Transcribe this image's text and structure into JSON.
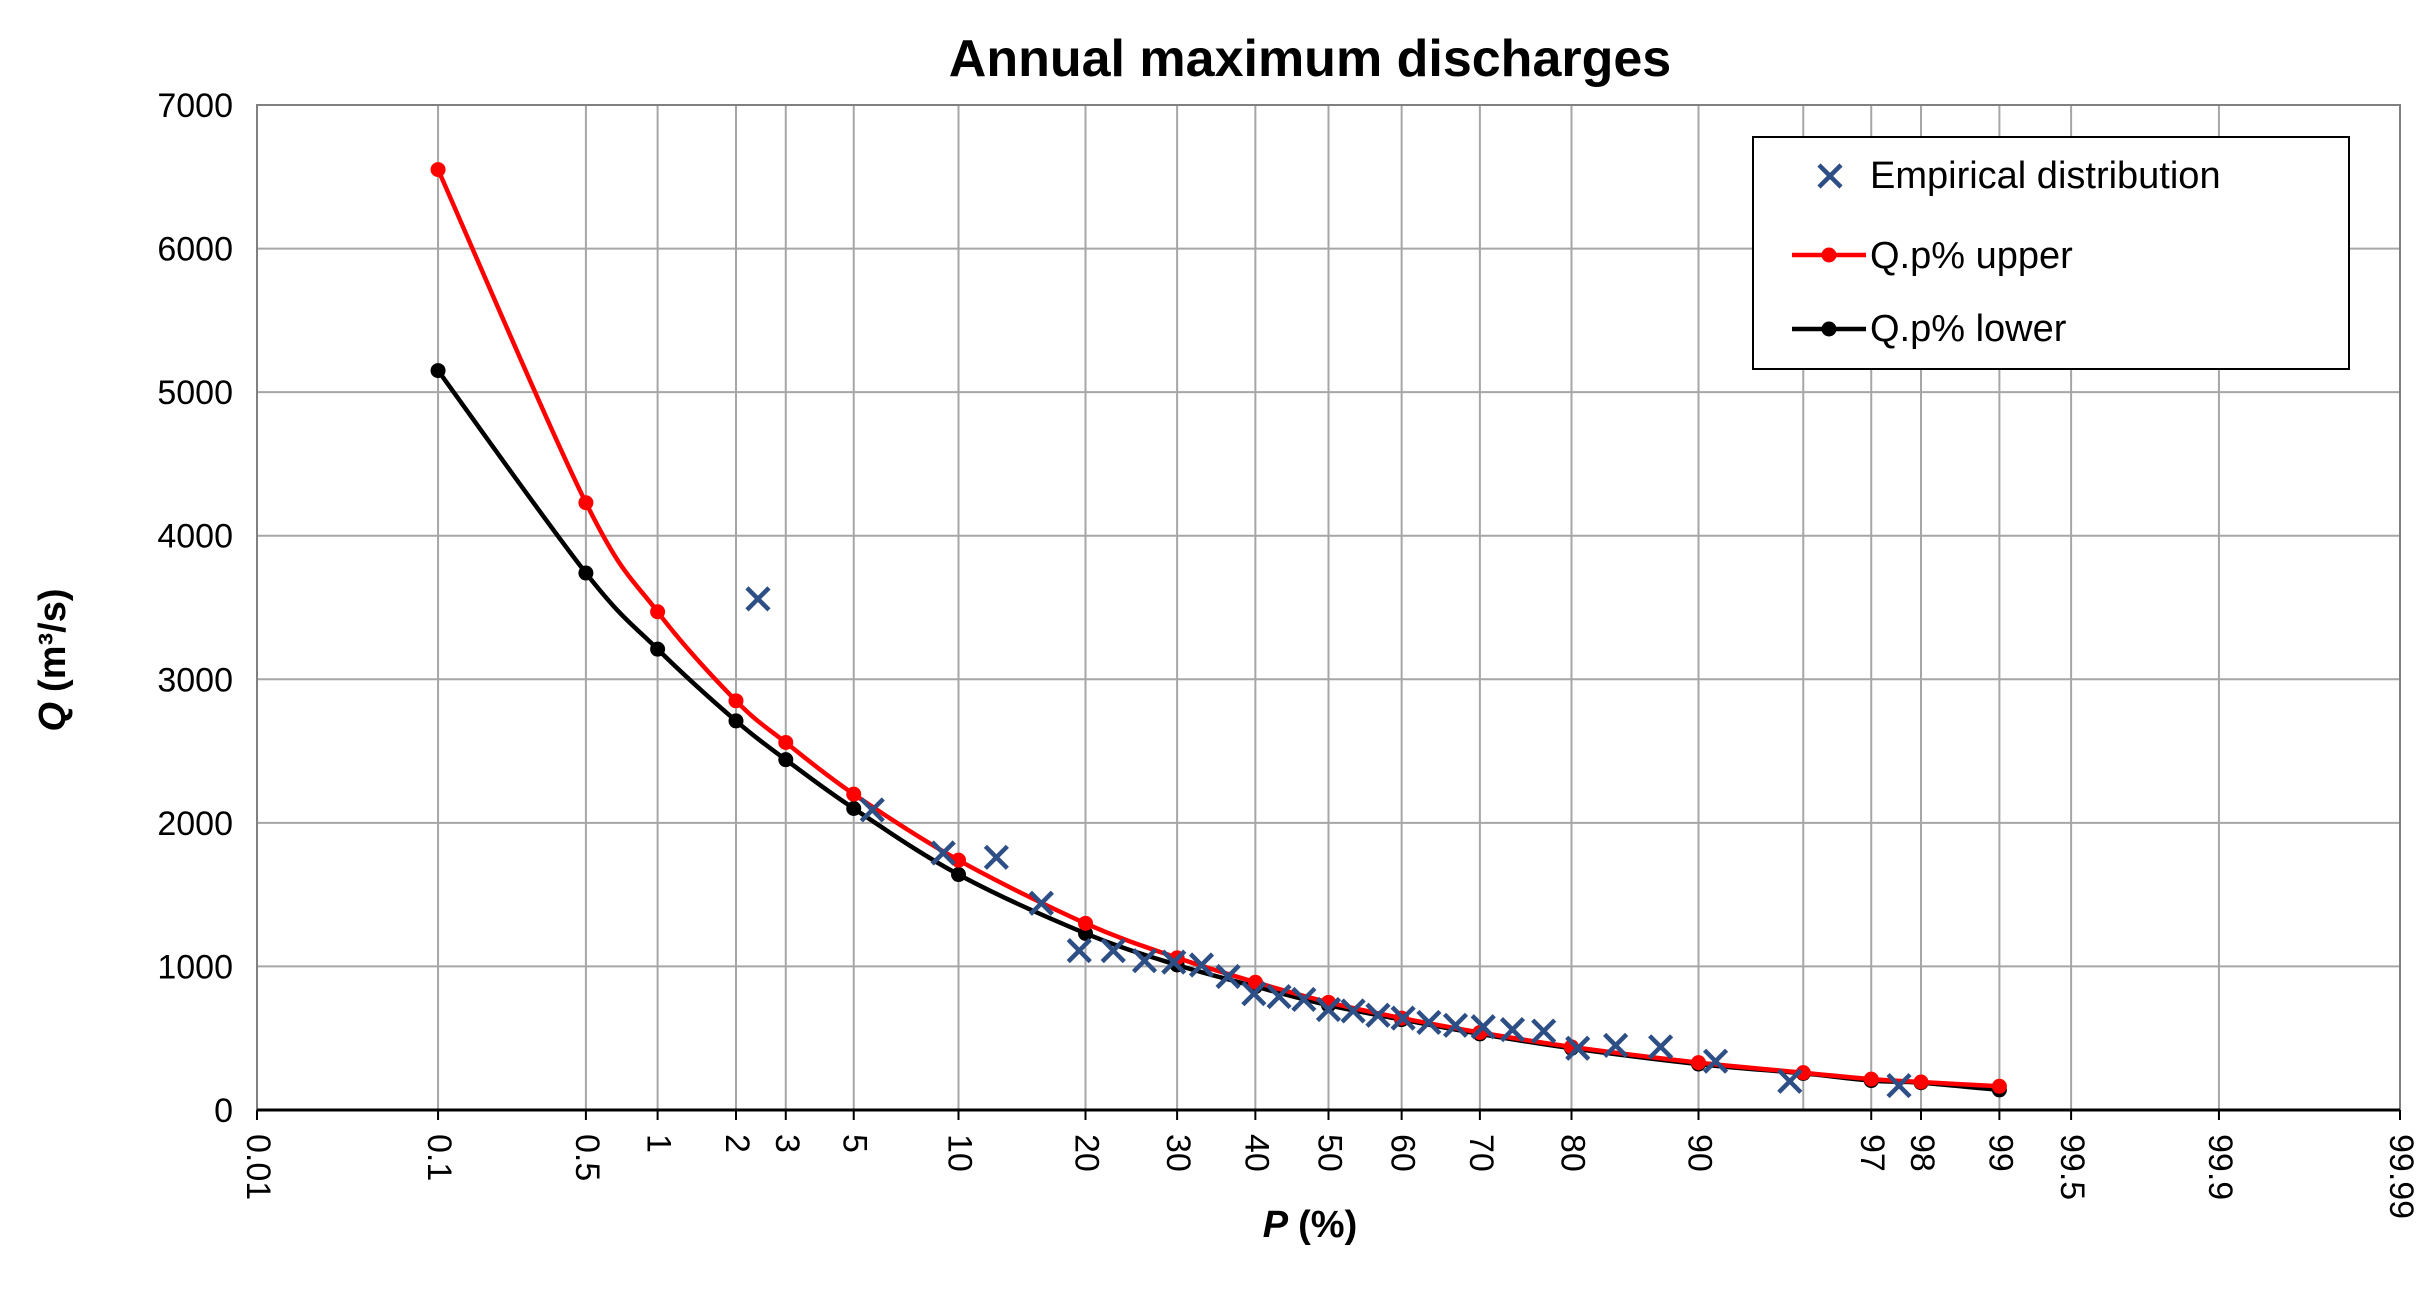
{
  "chart_data": {
    "type": "scatter",
    "title": "Annual maximum discharges",
    "xlabel_var": "P",
    "xlabel_unit": "(%)",
    "ylabel_var": "Q",
    "ylabel_unit": "(m³/s)",
    "x_scale": "normal-probability",
    "x_ticks": [
      0.01,
      0.1,
      0.5,
      1,
      2,
      3,
      5,
      10,
      20,
      30,
      40,
      50,
      60,
      70,
      80,
      90,
      97,
      98,
      99,
      99.5,
      99.9,
      99.99
    ],
    "x_tick_labels": [
      "0.01",
      "0.1",
      "0.5",
      "1",
      "2",
      "3",
      "5",
      "10",
      "20",
      "30",
      "40",
      "50",
      "60",
      "70",
      "80",
      "90",
      "97",
      "98",
      "99",
      "99.5",
      "99.9",
      "99.99"
    ],
    "x_grid_extra": [
      95
    ],
    "ylim": [
      0,
      7000
    ],
    "y_ticks": [
      0,
      1000,
      2000,
      3000,
      4000,
      5000,
      6000,
      7000
    ],
    "y_tick_labels": [
      "0",
      "1000",
      "2000",
      "3000",
      "4000",
      "5000",
      "6000",
      "7000"
    ],
    "grid": true,
    "legend_position": "top-right",
    "series": [
      {
        "name": "Empirical distribution",
        "kind": "scatter",
        "marker": "x",
        "color": "#2e4f86",
        "points": [
          [
            2.4,
            3560
          ],
          [
            5.7,
            2090
          ],
          [
            9.1,
            1790
          ],
          [
            12.5,
            1760
          ],
          [
            16.0,
            1440
          ],
          [
            19.4,
            1110
          ],
          [
            22.8,
            1110
          ],
          [
            26.2,
            1040
          ],
          [
            29.6,
            1030
          ],
          [
            33.0,
            1010
          ],
          [
            36.4,
            930
          ],
          [
            39.8,
            810
          ],
          [
            43.2,
            790
          ],
          [
            46.6,
            770
          ],
          [
            50.0,
            700
          ],
          [
            53.4,
            690
          ],
          [
            56.8,
            660
          ],
          [
            60.2,
            640
          ],
          [
            63.6,
            610
          ],
          [
            67.0,
            590
          ],
          [
            70.4,
            580
          ],
          [
            73.8,
            560
          ],
          [
            77.2,
            550
          ],
          [
            80.6,
            430
          ],
          [
            84.0,
            450
          ],
          [
            87.5,
            440
          ],
          [
            91.0,
            340
          ],
          [
            94.5,
            200
          ],
          [
            97.6,
            170
          ]
        ]
      },
      {
        "name": "Q.p% upper",
        "kind": "line",
        "color": "#ff0000",
        "points": [
          [
            0.1,
            6550
          ],
          [
            0.5,
            4230
          ],
          [
            1,
            3470
          ],
          [
            2,
            2850
          ],
          [
            3,
            2560
          ],
          [
            5,
            2200
          ],
          [
            10,
            1740
          ],
          [
            20,
            1300
          ],
          [
            30,
            1060
          ],
          [
            40,
            890
          ],
          [
            50,
            750
          ],
          [
            60,
            640
          ],
          [
            70,
            540
          ],
          [
            80,
            440
          ],
          [
            90,
            330
          ],
          [
            95,
            260
          ],
          [
            97,
            215
          ],
          [
            98,
            195
          ],
          [
            99,
            165
          ]
        ]
      },
      {
        "name": "Q.p% lower",
        "kind": "line",
        "color": "#000000",
        "points": [
          [
            0.1,
            5150
          ],
          [
            0.5,
            3740
          ],
          [
            1,
            3210
          ],
          [
            2,
            2710
          ],
          [
            3,
            2440
          ],
          [
            5,
            2100
          ],
          [
            10,
            1640
          ],
          [
            20,
            1230
          ],
          [
            30,
            1010
          ],
          [
            40,
            860
          ],
          [
            50,
            730
          ],
          [
            60,
            630
          ],
          [
            70,
            530
          ],
          [
            80,
            430
          ],
          [
            90,
            320
          ],
          [
            95,
            255
          ],
          [
            97,
            205
          ],
          [
            98,
            190
          ],
          [
            99,
            140
          ]
        ]
      }
    ]
  }
}
